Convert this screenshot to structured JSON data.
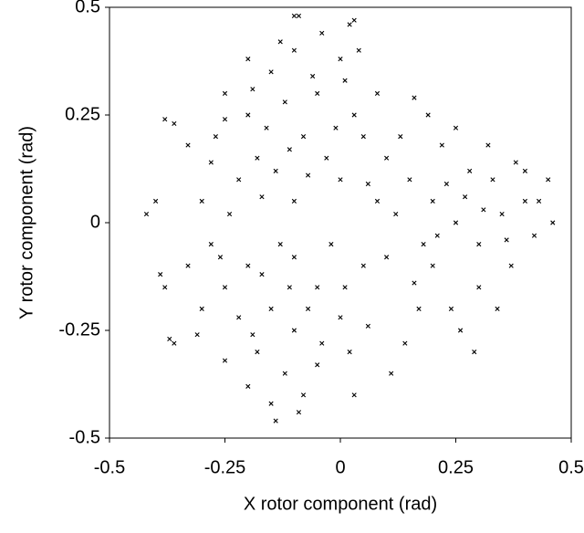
{
  "chart_data": {
    "type": "scatter",
    "x_label": "X rotor component (rad)",
    "y_label": "Y rotor component (rad)",
    "color": "#000000",
    "xlim": [
      -0.5,
      0.5
    ],
    "xticks": [
      -0.5,
      -0.25,
      0,
      0.25,
      0.5
    ],
    "ylim": [
      -0.5,
      0.5
    ],
    "yticks": [
      -0.5,
      -0.25,
      0,
      0.25,
      0.5
    ],
    "x": [
      -0.25,
      -0.2,
      -0.15,
      -0.1,
      -0.05,
      0,
      0.03,
      -0.12,
      -0.18,
      -0.22,
      -0.08,
      -0.03,
      0.05,
      -0.14,
      -0.27,
      -0.3,
      -0.1,
      0.0,
      -0.06,
      -0.16,
      -0.2,
      -0.04,
      0.02,
      -0.09,
      0.08,
      0.1,
      -0.24,
      -0.28,
      -0.33,
      -0.36,
      -0.11,
      -0.01,
      0.06,
      -0.19,
      -0.13,
      0.01,
      -0.07,
      -0.25,
      0.04,
      -0.17,
      0.15,
      0.2,
      0.25,
      0.3,
      0.35,
      0.28,
      0.22,
      0.18,
      0.12,
      0.33,
      0.4,
      0.45,
      0.42,
      0.37,
      0.3,
      0.24,
      0.16,
      0.1,
      0.2,
      0.27,
      0.32,
      0.38,
      0.46,
      0.43,
      0.26,
      0.19,
      0.13,
      0.08,
      0.34,
      0.29,
      0.23,
      0.17,
      0.36,
      0.31,
      0.21,
      0.14,
      0.11,
      0.4,
      0.25,
      0.16,
      -0.2,
      -0.15,
      -0.1,
      -0.05,
      0,
      -0.25,
      -0.3,
      -0.18,
      -0.12,
      -0.08,
      -0.15,
      -0.2,
      0.02,
      0.05,
      -0.02,
      -0.1,
      -0.28,
      -0.33,
      -0.38,
      -0.36,
      -0.25,
      -0.14,
      -0.05,
      0.03,
      -0.22,
      -0.07,
      -0.17,
      -0.11,
      0.01,
      -0.31,
      -0.26,
      -0.04,
      -0.09,
      -0.19,
      0.06,
      -0.13,
      -0.42,
      -0.4,
      -0.38,
      -0.39,
      -0.37,
      0.03,
      -0.1
    ],
    "values": [
      0.3,
      0.25,
      0.35,
      0.4,
      0.3,
      0.38,
      0.25,
      0.28,
      0.15,
      0.1,
      0.2,
      0.15,
      0.2,
      0.12,
      0.2,
      0.05,
      0.05,
      0.1,
      0.34,
      0.22,
      0.38,
      0.44,
      0.46,
      0.48,
      0.3,
      0.15,
      0.02,
      0.14,
      0.18,
      0.23,
      0.17,
      0.22,
      0.09,
      0.31,
      0.42,
      0.33,
      0.11,
      0.24,
      0.4,
      0.06,
      0.1,
      0.05,
      0.0,
      -0.05,
      0.02,
      0.12,
      0.18,
      -0.05,
      0.02,
      0.1,
      0.05,
      0.1,
      -0.03,
      -0.1,
      -0.15,
      -0.2,
      -0.14,
      -0.08,
      -0.1,
      0.06,
      0.18,
      0.14,
      0.0,
      0.05,
      -0.25,
      0.25,
      0.2,
      0.05,
      -0.2,
      -0.3,
      0.09,
      -0.2,
      -0.04,
      0.03,
      -0.03,
      -0.28,
      -0.35,
      0.12,
      0.22,
      0.29,
      -0.1,
      -0.2,
      -0.25,
      -0.15,
      -0.22,
      -0.15,
      -0.2,
      -0.3,
      -0.35,
      -0.4,
      -0.42,
      -0.38,
      -0.3,
      -0.1,
      -0.05,
      -0.08,
      -0.05,
      -0.1,
      -0.15,
      -0.28,
      -0.32,
      -0.46,
      -0.33,
      -0.4,
      -0.22,
      -0.2,
      -0.12,
      -0.15,
      -0.15,
      -0.26,
      -0.08,
      -0.28,
      -0.44,
      -0.26,
      -0.24,
      -0.05,
      0.02,
      0.05,
      0.24,
      -0.12,
      -0.27,
      0.47,
      0.48
    ]
  }
}
